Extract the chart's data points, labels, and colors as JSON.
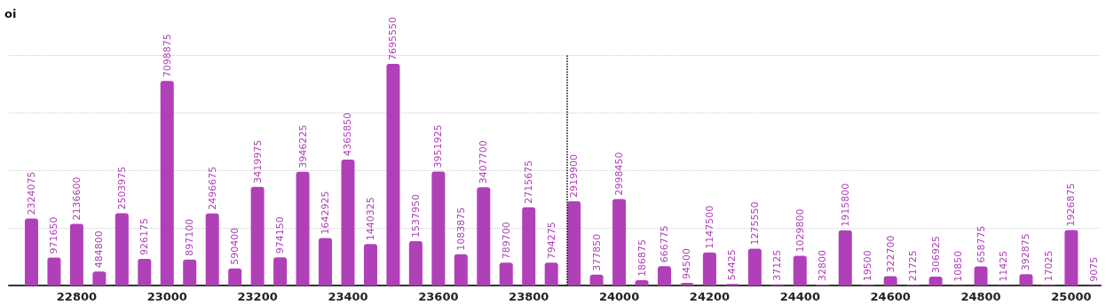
{
  "chart_data": {
    "type": "bar",
    "ylabel": "oi",
    "x": [
      22700,
      22750,
      22800,
      22850,
      22900,
      22950,
      23000,
      23050,
      23100,
      23150,
      23200,
      23250,
      23300,
      23350,
      23400,
      23450,
      23500,
      23550,
      23600,
      23650,
      23700,
      23750,
      23800,
      23850,
      23900,
      23950,
      24000,
      24050,
      24100,
      24150,
      24200,
      24250,
      24300,
      24350,
      24400,
      24450,
      24500,
      24550,
      24600,
      24650,
      24700,
      24750,
      24800,
      24850,
      24900,
      24950,
      25000,
      25050
    ],
    "values": [
      2324075,
      971650,
      2136600,
      484800,
      2503975,
      926175,
      7098875,
      897100,
      2496675,
      590400,
      3419975,
      974150,
      3946225,
      1642925,
      4365850,
      1440325,
      7695550,
      1537950,
      3951925,
      1083875,
      3407700,
      789700,
      2715675,
      794275,
      2919900,
      377850,
      2998450,
      186875,
      666775,
      94500,
      1147500,
      54425,
      1275550,
      37125,
      1029800,
      32800,
      1915800,
      19500,
      322700,
      21725,
      306925,
      10850,
      658775,
      11425,
      392875,
      17025,
      1926875,
      9075
    ],
    "color": "#b040b8",
    "data_labels": true,
    "xlim": [
      22650,
      25065
    ],
    "xticks": [
      22800,
      23000,
      23200,
      23400,
      23600,
      23800,
      24000,
      24200,
      24400,
      24600,
      24800,
      25000
    ],
    "ylim": [
      0,
      8000000
    ],
    "yticks": [
      {
        "value": 0,
        "label": null
      },
      {
        "value": 2000000,
        "label": null
      },
      {
        "value": 4000000,
        "label": null
      },
      {
        "value": 6000000,
        "label": null
      },
      {
        "value": 8000000,
        "label": null
      }
    ],
    "tick_labels": "x",
    "grid": "y",
    "ref_lines": [
      {
        "axis": "x",
        "value": 23885,
        "color": "#000000",
        "line_style": "dotted"
      }
    ]
  }
}
